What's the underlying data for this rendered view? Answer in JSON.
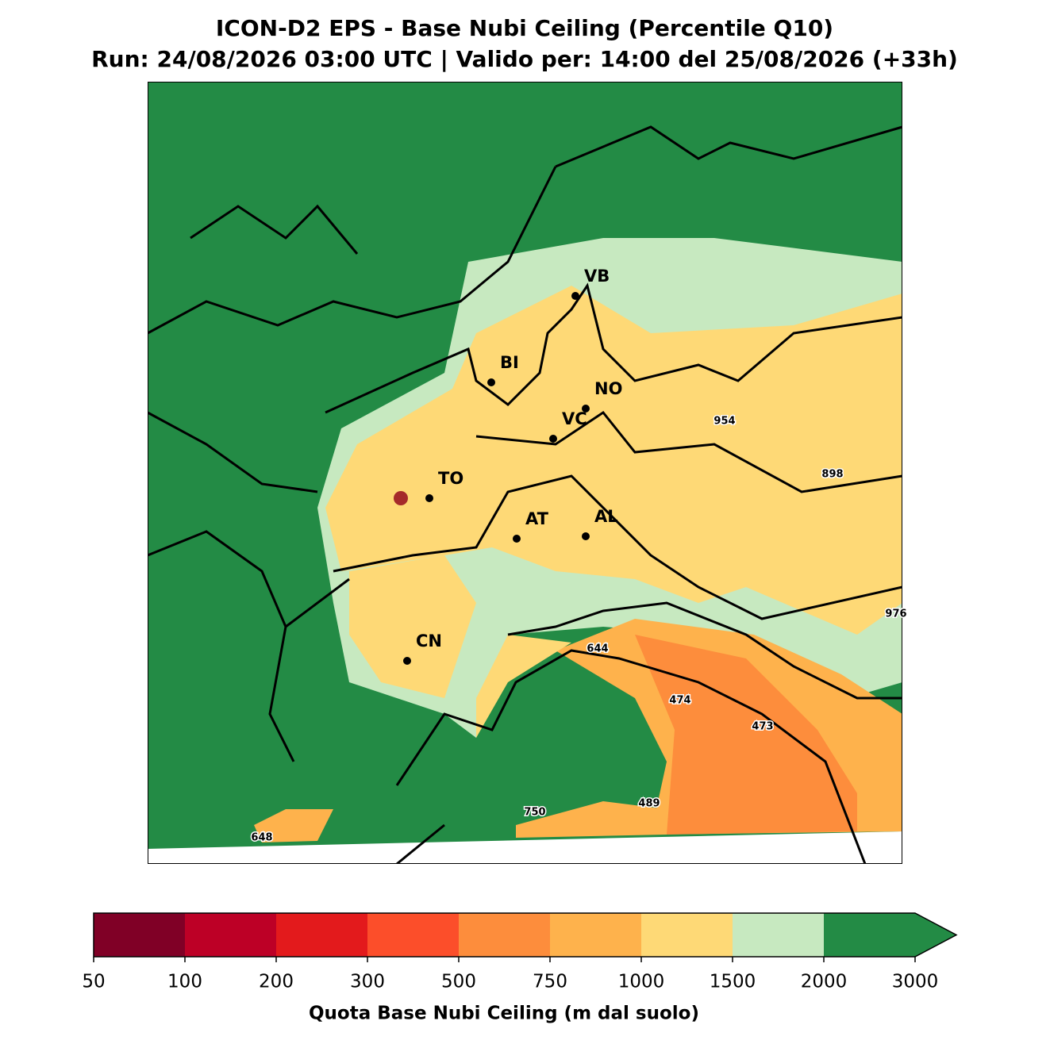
{
  "title": "ICON-D2 EPS - Base Nubi Ceiling (Percentile Q10)",
  "subtitle": "Run: 24/08/2026 03:00 UTC | Valido per: 14:00 del 25/08/2026 (+33h)",
  "map": {
    "cities": [
      "VB",
      "BI",
      "NO",
      "VC",
      "TO",
      "AT",
      "AL",
      "CN"
    ],
    "annotations": [
      954,
      898,
      976,
      644,
      474,
      473,
      489,
      750,
      648
    ]
  },
  "colorbar": {
    "bins": [
      50,
      100,
      200,
      300,
      500,
      750,
      1000,
      1500,
      2000,
      3000
    ],
    "colors": [
      "#800026",
      "#bd0026",
      "#e31a1c",
      "#fc4e2a",
      "#fd8d3c",
      "#feb24c",
      "#fed976",
      "#c7e9c0",
      "#238b45"
    ],
    "label": "Quota Base Nubi Ceiling (m dal suolo)"
  }
}
